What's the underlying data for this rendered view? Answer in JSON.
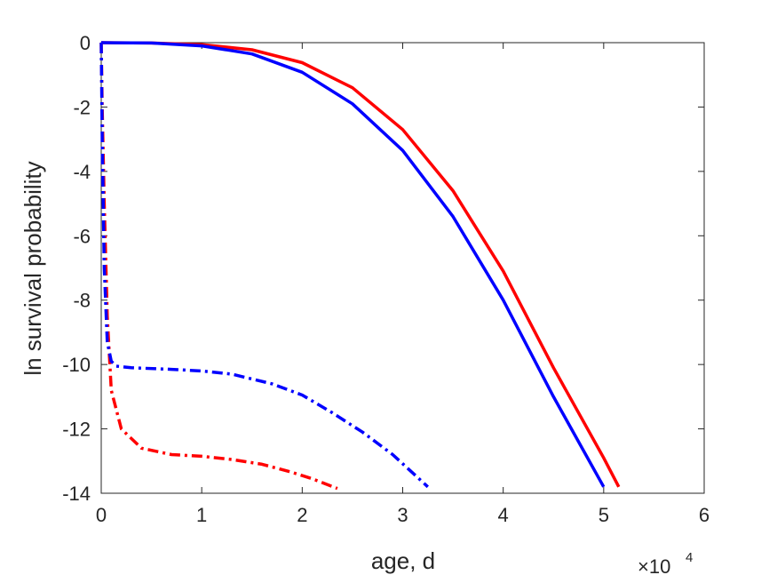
{
  "chart_data": {
    "type": "line",
    "title": "",
    "xlabel": "age, d",
    "ylabel": "ln survival probability",
    "x_multiplier": {
      "symbol": "×10",
      "exponent": "4"
    },
    "xlim": [
      0,
      60000
    ],
    "ylim": [
      -14,
      0
    ],
    "xticks": [
      0,
      10000,
      20000,
      30000,
      40000,
      50000,
      60000
    ],
    "xtick_labels": [
      "0",
      "1",
      "2",
      "3",
      "4",
      "5",
      "6"
    ],
    "yticks": [
      0,
      -2,
      -4,
      -6,
      -8,
      -10,
      -12,
      -14
    ],
    "ytick_labels": [
      "0",
      "-2",
      "-4",
      "-6",
      "-8",
      "-10",
      "-12",
      "-14"
    ],
    "grid": false,
    "series": [
      {
        "color": "#ff0000",
        "style": "solid",
        "x": [
          0,
          5000,
          10000,
          15000,
          20000,
          25000,
          30000,
          35000,
          40000,
          45000,
          50000,
          51500
        ],
        "y": [
          0,
          -0.01,
          -0.06,
          -0.22,
          -0.62,
          -1.4,
          -2.7,
          -4.6,
          -7.1,
          -10.1,
          -12.9,
          -13.8
        ]
      },
      {
        "color": "#0000ff",
        "style": "solid",
        "x": [
          0,
          5000,
          10000,
          15000,
          20000,
          25000,
          30000,
          35000,
          40000,
          45000,
          50000
        ],
        "y": [
          0,
          -0.01,
          -0.1,
          -0.35,
          -0.92,
          -1.9,
          -3.35,
          -5.4,
          -8.0,
          -11.0,
          -13.8
        ]
      },
      {
        "color": "#ff0000",
        "style": "dashdot",
        "x": [
          0,
          100,
          300,
          600,
          1000,
          2000,
          4000,
          7000,
          10000,
          13000,
          16000,
          19000,
          21000,
          23500
        ],
        "y": [
          0,
          -2,
          -5,
          -8.5,
          -10.8,
          -12.0,
          -12.6,
          -12.8,
          -12.85,
          -12.95,
          -13.1,
          -13.35,
          -13.55,
          -13.85
        ]
      },
      {
        "color": "#0000ff",
        "style": "dashdot",
        "x": [
          0,
          100,
          300,
          600,
          1000,
          1500,
          3000,
          7000,
          10000,
          13000,
          17000,
          20000,
          23000,
          26000,
          29000,
          32500
        ],
        "y": [
          0,
          -3,
          -7,
          -9.3,
          -9.9,
          -10.05,
          -10.1,
          -10.15,
          -10.2,
          -10.3,
          -10.6,
          -10.95,
          -11.5,
          -12.1,
          -12.8,
          -13.8
        ]
      }
    ]
  }
}
